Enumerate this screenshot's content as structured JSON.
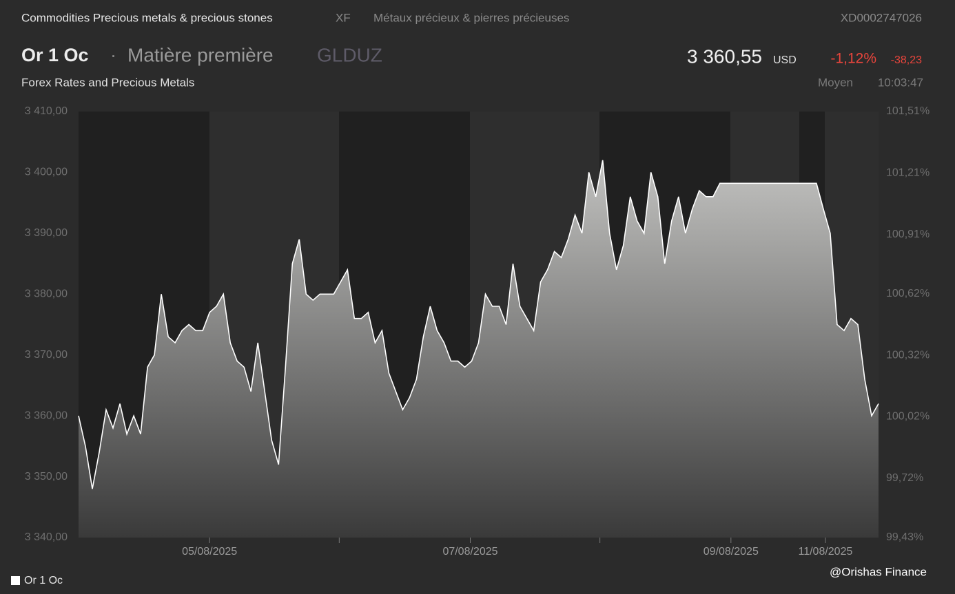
{
  "header": {
    "category": "Commodities Precious metals & precious stones",
    "market": "XF",
    "category_fr": "Métaux précieux & pierres précieuses",
    "isin": "XD0002747026",
    "name": "Or 1 Oc",
    "separator": "·",
    "type": "Matière première",
    "symbol": "GLDUZ",
    "price": "3 360,55",
    "currency": "USD",
    "change_pct": "-1,12%",
    "change": "-38,23",
    "source": "Forex Rates and Precious Metals",
    "price_kind": "Moyen",
    "time": "10:03:47"
  },
  "watermark": "@Orishas Finance",
  "chart_data": {
    "type": "area",
    "series": [
      {
        "name": "Or 1 Oc",
        "color": "#ffffff",
        "values": [
          3360,
          3355,
          3348,
          3354,
          3361,
          3358,
          3362,
          3357,
          3360,
          3357,
          3368,
          3370,
          3380,
          3373,
          3372,
          3374,
          3375,
          3374,
          3374,
          3377,
          3378,
          3380,
          3372,
          3369,
          3368,
          3364,
          3372,
          3364,
          3356,
          3352,
          3368,
          3385,
          3389,
          3380,
          3379,
          3380,
          3380,
          3380,
          3382,
          3384,
          3376,
          3376,
          3377,
          3372,
          3374,
          3367,
          3364,
          3361,
          3363,
          3366,
          3373,
          3378,
          3374,
          3372,
          3369,
          3369,
          3368,
          3369,
          3372,
          3380,
          3378,
          3378,
          3375,
          3385,
          3378,
          3376,
          3374,
          3382,
          3384,
          3387,
          3386,
          3389,
          3393,
          3390,
          3400,
          3396,
          3402,
          3390,
          3384,
          3388,
          3396,
          3392,
          3390,
          3400,
          3396,
          3385,
          3392,
          3396,
          3390,
          3394,
          3397,
          3396,
          3396,
          3398.2,
          3398.2,
          3398.2,
          3398.2,
          3398.2,
          3398.2,
          3398.2,
          3398.2,
          3398.2,
          3398.2,
          3398.2,
          3398.2,
          3398.2,
          3398.2,
          3398.2,
          3394,
          3390,
          3375,
          3374,
          3376,
          3375,
          3366,
          3360,
          3362
        ]
      }
    ],
    "xlim": [
      0,
      116
    ],
    "xticks": [
      {
        "value": 19,
        "label": "05/08/2025"
      },
      {
        "value": 37.8,
        "label": null
      },
      {
        "value": 56.8,
        "label": "07/08/2025"
      },
      {
        "value": 75.6,
        "label": null
      },
      {
        "value": 94.6,
        "label": "09/08/2025"
      },
      {
        "value": 108.3,
        "label": "11/08/2025"
      }
    ],
    "ylim": [
      3340,
      3410
    ],
    "yticks": [
      {
        "value": 3340,
        "label": "3 340,00"
      },
      {
        "value": 3350,
        "label": "3 350,00"
      },
      {
        "value": 3360,
        "label": "3 360,00"
      },
      {
        "value": 3370,
        "label": "3 370,00"
      },
      {
        "value": 3380,
        "label": "3 380,00"
      },
      {
        "value": 3390,
        "label": "3 390,00"
      },
      {
        "value": 3400,
        "label": "3 400,00"
      },
      {
        "value": 3410,
        "label": "3 410,00"
      }
    ],
    "y2lim": [
      99.43,
      101.51
    ],
    "y2ticks": [
      {
        "value": 99.43,
        "label": "99,43%"
      },
      {
        "value": 99.72,
        "label": "99,72%"
      },
      {
        "value": 100.02,
        "label": "100,02%"
      },
      {
        "value": 100.32,
        "label": "100,32%"
      },
      {
        "value": 100.62,
        "label": "100,62%"
      },
      {
        "value": 100.91,
        "label": "100,91%"
      },
      {
        "value": 101.21,
        "label": "101,21%"
      },
      {
        "value": 101.51,
        "label": "101,51%"
      }
    ]
  }
}
